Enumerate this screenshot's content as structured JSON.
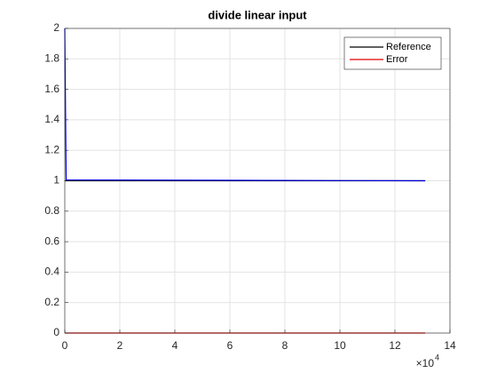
{
  "chart_data": {
    "type": "line",
    "title": "divide linear input",
    "xlim": [
      0,
      14
    ],
    "xticks": [
      0,
      2,
      4,
      6,
      8,
      10,
      12,
      14
    ],
    "ylim": [
      0,
      2
    ],
    "yticks": [
      0,
      0.2,
      0.4,
      0.6,
      0.8,
      1,
      1.2,
      1.4,
      1.6,
      1.8,
      2
    ],
    "x_scale_base": "×10",
    "x_scale_exponent": "4",
    "grid": true,
    "legend": "upper right",
    "series": [
      {
        "name": "Reference",
        "color": "#000000",
        "x": [
          0,
          13.1
        ],
        "values": [
          1,
          1
        ]
      },
      {
        "name": "Error",
        "color": "#e00000",
        "x": [
          0,
          13.1
        ],
        "values": [
          0,
          0
        ]
      },
      {
        "color": "#0000dd",
        "x": [
          0,
          0.05,
          13.1
        ],
        "values": [
          2,
          1.005,
          1
        ]
      }
    ]
  }
}
